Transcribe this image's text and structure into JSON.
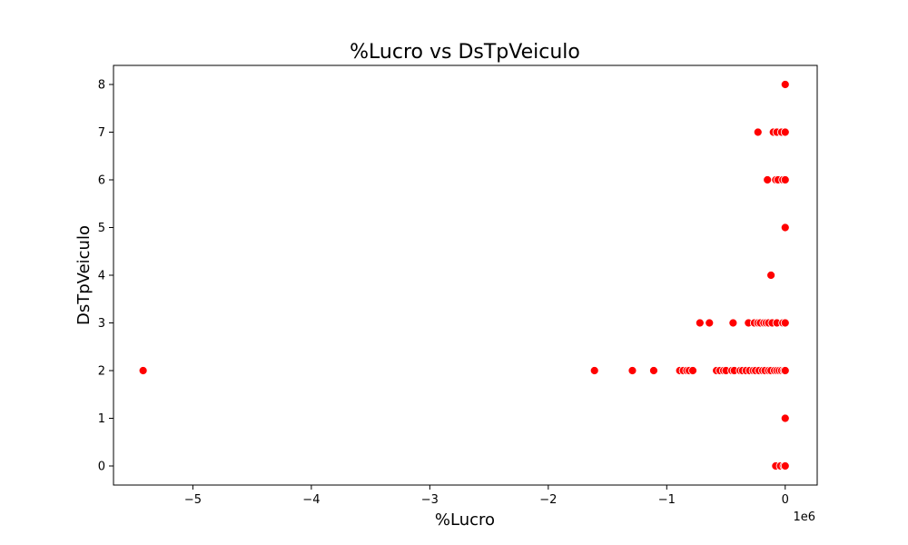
{
  "chart_data": {
    "type": "scatter",
    "title": "%Lucro vs DsTpVeiculo",
    "xlabel": "%Lucro",
    "ylabel": "DsTpVeiculo",
    "x_offset_label": "1e6",
    "xlim": [
      -5.67,
      0.27
    ],
    "ylim": [
      -0.4,
      8.4
    ],
    "x_ticks": [
      {
        "value": -5,
        "label": "−5"
      },
      {
        "value": -4,
        "label": "−4"
      },
      {
        "value": -3,
        "label": "−3"
      },
      {
        "value": -2,
        "label": "−2"
      },
      {
        "value": -1,
        "label": "−1"
      },
      {
        "value": 0,
        "label": "0"
      }
    ],
    "y_ticks": [
      {
        "value": 0,
        "label": "0"
      },
      {
        "value": 1,
        "label": "1"
      },
      {
        "value": 2,
        "label": "2"
      },
      {
        "value": 3,
        "label": "3"
      },
      {
        "value": 4,
        "label": "4"
      },
      {
        "value": 5,
        "label": "5"
      },
      {
        "value": 6,
        "label": "6"
      },
      {
        "value": 7,
        "label": "7"
      },
      {
        "value": 8,
        "label": "8"
      }
    ],
    "grid": false,
    "marker_color": "#ff0000",
    "marker_edge_color": "#ffffff",
    "series": [
      {
        "points": [
          {
            "x": 0.0,
            "y": 8
          },
          {
            "x": -0.23,
            "y": 7
          },
          {
            "x": -0.1,
            "y": 7
          },
          {
            "x": -0.07,
            "y": 7
          },
          {
            "x": -0.03,
            "y": 7
          },
          {
            "x": 0.0,
            "y": 7
          },
          {
            "x": -0.15,
            "y": 6
          },
          {
            "x": -0.08,
            "y": 6
          },
          {
            "x": -0.06,
            "y": 6
          },
          {
            "x": -0.02,
            "y": 6
          },
          {
            "x": 0.0,
            "y": 6
          },
          {
            "x": 0.0,
            "y": 5
          },
          {
            "x": -0.12,
            "y": 4
          },
          {
            "x": -0.72,
            "y": 3
          },
          {
            "x": -0.64,
            "y": 3
          },
          {
            "x": -0.44,
            "y": 3
          },
          {
            "x": -0.31,
            "y": 3
          },
          {
            "x": -0.26,
            "y": 3
          },
          {
            "x": -0.23,
            "y": 3
          },
          {
            "x": -0.21,
            "y": 3
          },
          {
            "x": -0.18,
            "y": 3
          },
          {
            "x": -0.16,
            "y": 3
          },
          {
            "x": -0.14,
            "y": 3
          },
          {
            "x": -0.11,
            "y": 3
          },
          {
            "x": -0.07,
            "y": 3
          },
          {
            "x": -0.02,
            "y": 3
          },
          {
            "x": 0.0,
            "y": 3
          },
          {
            "x": -5.42,
            "y": 2
          },
          {
            "x": -1.61,
            "y": 2
          },
          {
            "x": -1.29,
            "y": 2
          },
          {
            "x": -1.11,
            "y": 2
          },
          {
            "x": -0.89,
            "y": 2
          },
          {
            "x": -0.86,
            "y": 2
          },
          {
            "x": -0.83,
            "y": 2
          },
          {
            "x": -0.81,
            "y": 2
          },
          {
            "x": -0.78,
            "y": 2
          },
          {
            "x": -0.58,
            "y": 2
          },
          {
            "x": -0.55,
            "y": 2
          },
          {
            "x": -0.52,
            "y": 2
          },
          {
            "x": -0.5,
            "y": 2
          },
          {
            "x": -0.45,
            "y": 2
          },
          {
            "x": -0.43,
            "y": 2
          },
          {
            "x": -0.38,
            "y": 2
          },
          {
            "x": -0.36,
            "y": 2
          },
          {
            "x": -0.33,
            "y": 2
          },
          {
            "x": -0.3,
            "y": 2
          },
          {
            "x": -0.27,
            "y": 2
          },
          {
            "x": -0.25,
            "y": 2
          },
          {
            "x": -0.22,
            "y": 2
          },
          {
            "x": -0.19,
            "y": 2
          },
          {
            "x": -0.17,
            "y": 2
          },
          {
            "x": -0.14,
            "y": 2
          },
          {
            "x": -0.12,
            "y": 2
          },
          {
            "x": -0.09,
            "y": 2
          },
          {
            "x": -0.07,
            "y": 2
          },
          {
            "x": -0.05,
            "y": 2
          },
          {
            "x": -0.03,
            "y": 2
          },
          {
            "x": -0.01,
            "y": 2
          },
          {
            "x": 0.0,
            "y": 2
          },
          {
            "x": 0.0,
            "y": 1
          },
          {
            "x": -0.08,
            "y": 0
          },
          {
            "x": -0.04,
            "y": 0
          },
          {
            "x": -0.01,
            "y": 0
          },
          {
            "x": 0.0,
            "y": 0
          }
        ]
      }
    ]
  }
}
